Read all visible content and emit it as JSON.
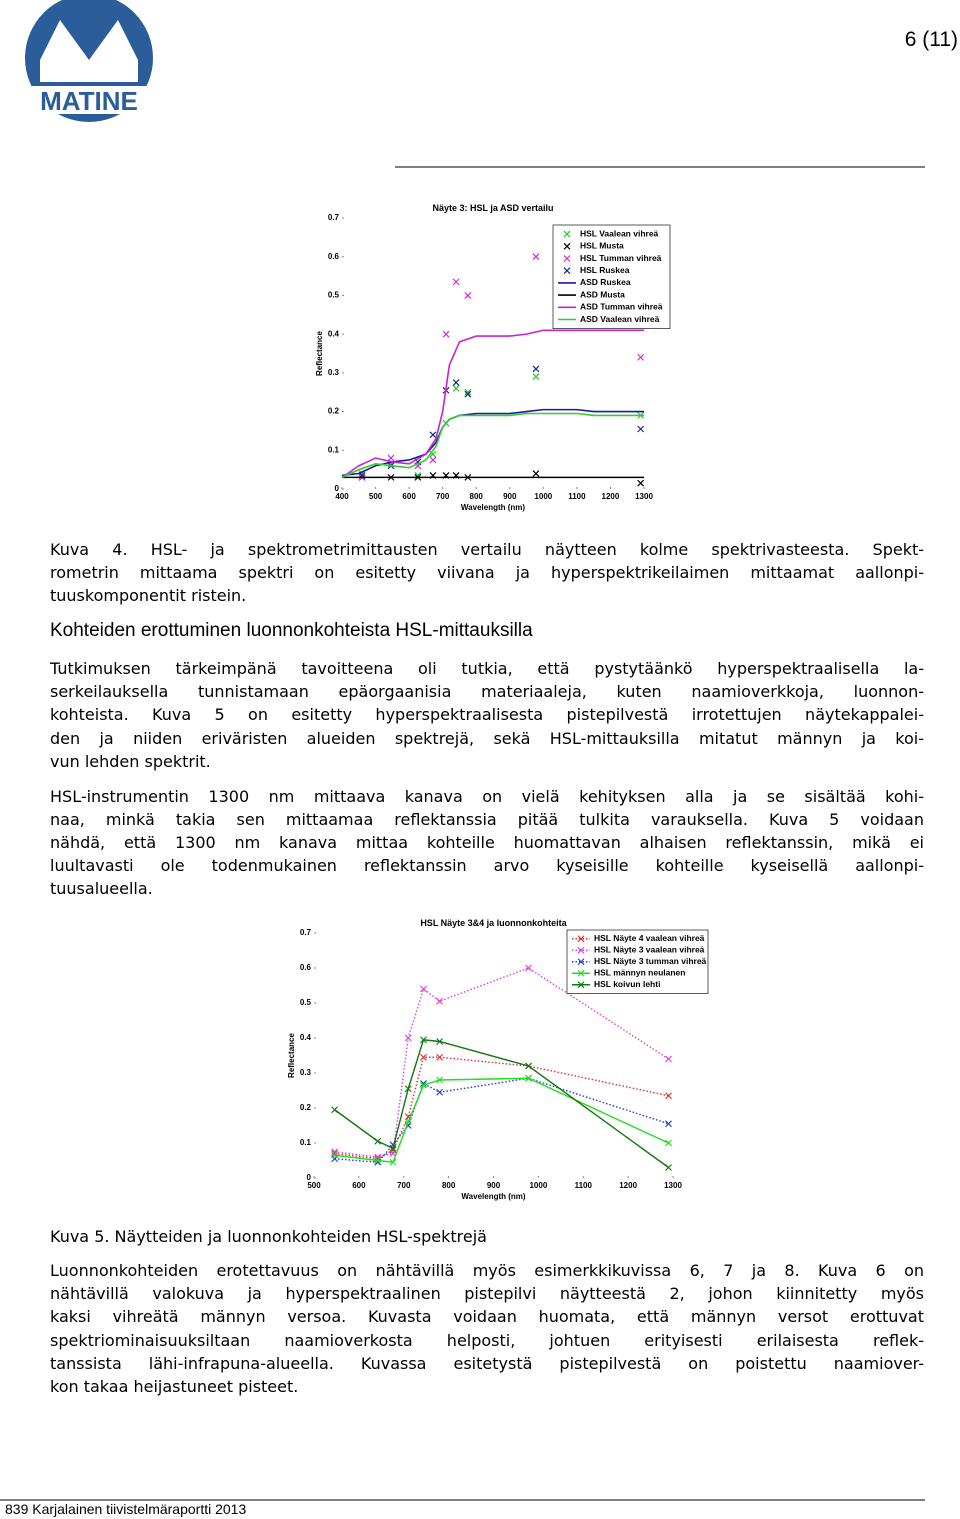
{
  "header": {
    "logo_text": "MATINE",
    "page_number": "6 (11)"
  },
  "chart_data": [
    {
      "type": "line",
      "title": "Näyte 3: HSL ja ASD vertailu",
      "x_label": "Wavelength (nm)",
      "y_label": "Reflectance",
      "xlim": [
        400,
        1300
      ],
      "xticks": [
        400,
        500,
        600,
        700,
        800,
        900,
        1000,
        1100,
        1200,
        1300
      ],
      "ylim": [
        0,
        0.7
      ],
      "yticks": [
        0,
        0.1,
        0.2,
        0.3,
        0.4,
        0.5,
        0.6,
        0.7
      ],
      "legend": "upper right",
      "series": [
        {
          "name": "HSL Vaalean vihreä",
          "color": "#22cc22",
          "marker": "x",
          "line": "none",
          "x": [
            460,
            546,
            626,
            671,
            710,
            740,
            775,
            978,
            1290
          ],
          "values": [
            0.04,
            0.065,
            0.035,
            0.09,
            0.17,
            0.26,
            0.25,
            0.29,
            0.19
          ]
        },
        {
          "name": "HSL Musta",
          "color": "#000000",
          "marker": "x",
          "line": "none",
          "x": [
            460,
            546,
            626,
            671,
            710,
            740,
            775,
            978,
            1290
          ],
          "values": [
            0.03,
            0.03,
            0.03,
            0.035,
            0.035,
            0.035,
            0.03,
            0.04,
            0.015
          ]
        },
        {
          "name": "HSL Tumman vihreä",
          "color": "#dd22dd",
          "marker": "x",
          "line": "none",
          "x": [
            460,
            546,
            626,
            671,
            710,
            740,
            775,
            978,
            1290
          ],
          "values": [
            0.03,
            0.08,
            0.06,
            0.075,
            0.4,
            0.535,
            0.5,
            0.6,
            0.34
          ]
        },
        {
          "name": "HSL Ruskea",
          "color": "#1a2a8a",
          "marker": "x",
          "line": "none",
          "x": [
            460,
            546,
            626,
            671,
            710,
            740,
            775,
            978,
            1290
          ],
          "values": [
            0.035,
            0.06,
            0.07,
            0.14,
            0.255,
            0.275,
            0.245,
            0.31,
            0.155
          ]
        },
        {
          "name": "ASD Ruskea",
          "color": "#1a1a99",
          "marker": "none",
          "line": "solid",
          "x": [
            400,
            450,
            500,
            550,
            600,
            650,
            680,
            700,
            720,
            750,
            800,
            850,
            900,
            950,
            1000,
            1050,
            1100,
            1150,
            1200,
            1250,
            1300
          ],
          "values": [
            0.035,
            0.04,
            0.06,
            0.07,
            0.075,
            0.09,
            0.12,
            0.16,
            0.18,
            0.19,
            0.195,
            0.195,
            0.195,
            0.2,
            0.205,
            0.205,
            0.205,
            0.2,
            0.2,
            0.2,
            0.2
          ]
        },
        {
          "name": "ASD Musta",
          "color": "#000000",
          "marker": "none",
          "line": "solid",
          "x": [
            400,
            450,
            500,
            550,
            600,
            650,
            680,
            700,
            720,
            750,
            800,
            850,
            900,
            950,
            1000,
            1050,
            1100,
            1150,
            1200,
            1250,
            1300
          ],
          "values": [
            0.03,
            0.03,
            0.03,
            0.03,
            0.03,
            0.03,
            0.03,
            0.03,
            0.03,
            0.03,
            0.03,
            0.03,
            0.03,
            0.03,
            0.03,
            0.03,
            0.03,
            0.03,
            0.03,
            0.03,
            0.03
          ]
        },
        {
          "name": "ASD Tumman vihreä",
          "color": "#cc22cc",
          "marker": "none",
          "line": "solid",
          "x": [
            400,
            450,
            500,
            550,
            600,
            650,
            680,
            700,
            720,
            750,
            800,
            850,
            900,
            950,
            1000,
            1050,
            1100,
            1150,
            1200,
            1250,
            1300
          ],
          "values": [
            0.03,
            0.06,
            0.08,
            0.07,
            0.065,
            0.09,
            0.13,
            0.2,
            0.32,
            0.38,
            0.395,
            0.395,
            0.395,
            0.4,
            0.41,
            0.41,
            0.41,
            0.41,
            0.41,
            0.41,
            0.41
          ]
        },
        {
          "name": "ASD Vaalean vihreä",
          "color": "#33cc33",
          "marker": "none",
          "line": "solid",
          "x": [
            400,
            450,
            500,
            550,
            600,
            650,
            680,
            700,
            720,
            750,
            800,
            850,
            900,
            950,
            1000,
            1050,
            1100,
            1150,
            1200,
            1250,
            1300
          ],
          "values": [
            0.03,
            0.05,
            0.065,
            0.06,
            0.055,
            0.075,
            0.11,
            0.16,
            0.18,
            0.19,
            0.19,
            0.19,
            0.19,
            0.195,
            0.195,
            0.195,
            0.195,
            0.19,
            0.19,
            0.19,
            0.19
          ]
        }
      ]
    },
    {
      "type": "line",
      "title": "HSL Näyte 3&4 ja luonnonkohteita",
      "x_label": "Wavelength (nm)",
      "y_label": "Reflectance",
      "xlim": [
        500,
        1300
      ],
      "xticks": [
        500,
        600,
        700,
        800,
        900,
        1000,
        1100,
        1200,
        1300
      ],
      "ylim": [
        0,
        0.7
      ],
      "yticks": [
        0,
        0.1,
        0.2,
        0.3,
        0.4,
        0.5,
        0.6,
        0.7
      ],
      "legend": "upper right",
      "series": [
        {
          "name": "HSL Näyte 4 vaalean vihreä",
          "color": "#e03030",
          "marker": "x",
          "line": "dotted",
          "x": [
            546,
            642,
            676,
            710,
            744,
            780,
            978,
            1290
          ],
          "values": [
            0.07,
            0.055,
            0.08,
            0.175,
            0.345,
            0.345,
            0.32,
            0.235
          ]
        },
        {
          "name": "HSL Näyte 3 vaalean vihreä",
          "color": "#e040e0",
          "marker": "x",
          "line": "dotted",
          "x": [
            546,
            642,
            676,
            710,
            744,
            780,
            978,
            1290
          ],
          "values": [
            0.075,
            0.06,
            0.07,
            0.4,
            0.54,
            0.505,
            0.6,
            0.34
          ]
        },
        {
          "name": "HSL Näyte 3 tumman vihreä",
          "color": "#2040d0",
          "marker": "x",
          "line": "dotted",
          "x": [
            546,
            642,
            676,
            710,
            744,
            780,
            978,
            1290
          ],
          "values": [
            0.055,
            0.045,
            0.095,
            0.15,
            0.27,
            0.245,
            0.285,
            0.155
          ]
        },
        {
          "name": "HSL männyn neulanen",
          "color": "#22dd22",
          "marker": "x",
          "line": "solid",
          "x": [
            546,
            642,
            676,
            710,
            744,
            780,
            978,
            1290
          ],
          "values": [
            0.065,
            0.05,
            0.045,
            0.16,
            0.265,
            0.28,
            0.285,
            0.1
          ]
        },
        {
          "name": "HSL koivun lehti",
          "color": "#117711",
          "marker": "x",
          "line": "solid",
          "x": [
            546,
            642,
            676,
            710,
            744,
            780,
            978,
            1290
          ],
          "values": [
            0.195,
            0.105,
            0.085,
            0.255,
            0.395,
            0.39,
            0.32,
            0.03
          ]
        }
      ]
    }
  ],
  "caption_1": [
    "Kuva 4. HSL- ja spektrometrimittausten vertailu näytteen kolme spektrivasteesta. Spekt-",
    "rometrin mittaama spektri on esitetty viivana ja hyperspektrikeilaimen mittaamat aallonpi-",
    "tuuskomponentit ristein."
  ],
  "heading": "Kohteiden erottuminen luonnonkohteista HSL-mittauksilla",
  "paragraph_1": [
    "Tutkimuksen tärkeimpänä tavoitteena oli tutkia, että pystytäänkö hyperspektraalisella la-",
    "serkeilauksella tunnistamaan epäorgaanisia materiaaleja, kuten naamioverkkoja, luonnon-",
    "kohteista. Kuva 5 on esitetty hyperspektraalisesta pistepilvestä irrotettujen näytekappalei-",
    "den ja niiden eriväristen alueiden spektrejä, sekä HSL-mittauksilla mitatut männyn ja koi-",
    "vun lehden spektrit."
  ],
  "paragraph_2": [
    "HSL-instrumentin 1300 nm mittaava kanava on vielä kehityksen alla ja se sisältää kohi-",
    "naa, minkä takia sen mittaamaa reflektanssia pitää tulkita varauksella. Kuva 5 voidaan",
    "nähdä, että 1300 nm kanava mittaa kohteille huomattavan alhaisen reflektanssin, mikä ei",
    "luultavasti ole todenmukainen reflektanssin arvo kyseisille kohteille kyseisellä aallonpi-",
    "tuusalueella."
  ],
  "caption_2": [
    "Kuva 5. Näytteiden ja luonnonkohteiden HSL-spektrejä"
  ],
  "paragraph_3": [
    "Luonnonkohteiden erotettavuus on nähtävillä myös esimerkkikuvissa 6, 7 ja 8. Kuva 6 on",
    "nähtävillä valokuva ja hyperspektraalinen pistepilvi näytteestä 2, johon kiinnitetty myös",
    "kaksi vihreätä männyn versoa. Kuvasta voidaan huomata, että männyn versot erottuvat",
    "spektriominaisuuksiltaan naamioverkosta helposti, johtuen erityisesti erilaisesta reflek-",
    "tanssista lähi-infrapuna-alueella. Kuvassa esitetystä pistepilvestä on poistettu naamiover-",
    "kon takaa heijastuneet pisteet."
  ],
  "footer": "839 Karjalainen tiivistelmäraportti 2013"
}
